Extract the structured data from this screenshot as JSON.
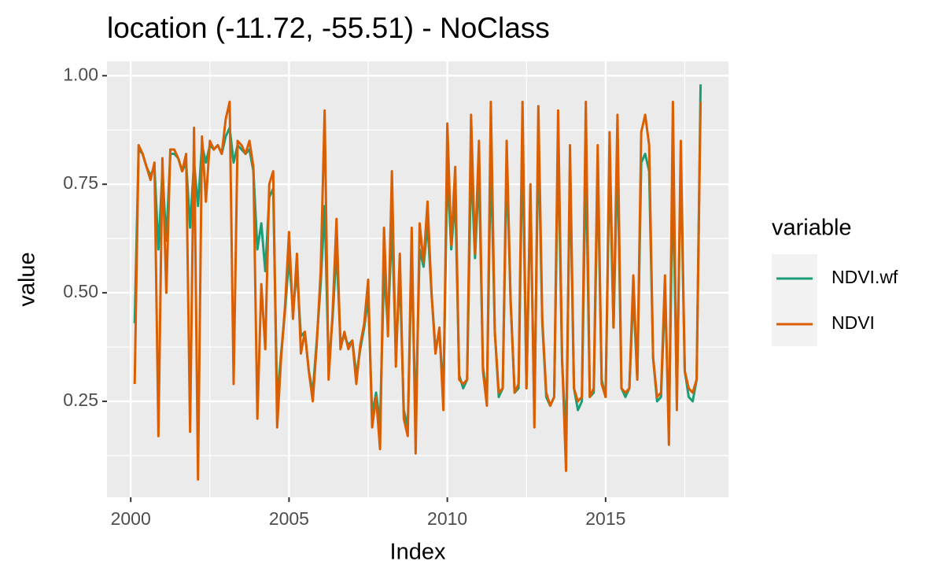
{
  "chart_data": {
    "type": "line",
    "title": "location (-11.72, -55.51) - NoClass",
    "x_label": "Index",
    "y_label": "value",
    "legend_title": "variable",
    "legend_position": "right",
    "grid": true,
    "xlim": [
      1999.25,
      2018.88
    ],
    "xticks": [
      2000,
      2005,
      2010,
      2015
    ],
    "ylim": [
      0.029,
      1.033
    ],
    "yticks": [
      {
        "value": 0.25,
        "label": "0.25"
      },
      {
        "value": 0.5,
        "label": "0.50"
      },
      {
        "value": 0.75,
        "label": "0.75"
      },
      {
        "value": 1.0,
        "label": "1.00"
      }
    ],
    "x": [
      2000.125,
      2000.25,
      2000.375,
      2000.5,
      2000.625,
      2000.75,
      2000.875,
      2001.0,
      2001.125,
      2001.25,
      2001.375,
      2001.5,
      2001.625,
      2001.75,
      2001.875,
      2002.0,
      2002.125,
      2002.25,
      2002.375,
      2002.5,
      2002.625,
      2002.75,
      2002.875,
      2003.0,
      2003.125,
      2003.25,
      2003.375,
      2003.5,
      2003.625,
      2003.75,
      2003.875,
      2004.0,
      2004.125,
      2004.25,
      2004.375,
      2004.5,
      2004.625,
      2004.75,
      2004.875,
      2005.0,
      2005.125,
      2005.25,
      2005.375,
      2005.5,
      2005.625,
      2005.75,
      2005.875,
      2006.0,
      2006.125,
      2006.25,
      2006.375,
      2006.5,
      2006.625,
      2006.75,
      2006.875,
      2007.0,
      2007.125,
      2007.25,
      2007.375,
      2007.5,
      2007.625,
      2007.75,
      2007.875,
      2008.0,
      2008.125,
      2008.25,
      2008.375,
      2008.5,
      2008.625,
      2008.75,
      2008.875,
      2009.0,
      2009.125,
      2009.25,
      2009.375,
      2009.5,
      2009.625,
      2009.75,
      2009.875,
      2010.0,
      2010.125,
      2010.25,
      2010.375,
      2010.5,
      2010.625,
      2010.75,
      2010.875,
      2011.0,
      2011.125,
      2011.25,
      2011.375,
      2011.5,
      2011.625,
      2011.75,
      2011.875,
      2012.0,
      2012.125,
      2012.25,
      2012.375,
      2012.5,
      2012.625,
      2012.75,
      2012.875,
      2013.0,
      2013.125,
      2013.25,
      2013.375,
      2013.5,
      2013.625,
      2013.75,
      2013.875,
      2014.0,
      2014.125,
      2014.25,
      2014.375,
      2014.5,
      2014.625,
      2014.75,
      2014.875,
      2015.0,
      2015.125,
      2015.25,
      2015.375,
      2015.5,
      2015.625,
      2015.75,
      2015.875,
      2016.0,
      2016.125,
      2016.25,
      2016.375,
      2016.5,
      2016.625,
      2016.75,
      2016.875,
      2017.0,
      2017.125,
      2017.25,
      2017.375,
      2017.5,
      2017.625,
      2017.75,
      2017.875,
      2018.0
    ],
    "series": [
      {
        "name": "NDVI.wf",
        "color": "#1b9e77",
        "values": [
          0.43,
          0.83,
          0.82,
          0.79,
          0.77,
          0.79,
          0.6,
          0.78,
          0.62,
          0.82,
          0.82,
          0.81,
          0.78,
          0.8,
          0.65,
          0.8,
          0.7,
          0.84,
          0.8,
          0.84,
          0.83,
          0.84,
          0.82,
          0.86,
          0.88,
          0.8,
          0.84,
          0.83,
          0.82,
          0.83,
          0.78,
          0.6,
          0.66,
          0.55,
          0.72,
          0.74,
          0.25,
          0.36,
          0.46,
          0.58,
          0.46,
          0.55,
          0.4,
          0.41,
          0.32,
          0.27,
          0.39,
          0.52,
          0.7,
          0.33,
          0.44,
          0.6,
          0.39,
          0.4,
          0.38,
          0.39,
          0.31,
          0.37,
          0.42,
          0.49,
          0.22,
          0.27,
          0.2,
          0.55,
          0.42,
          0.66,
          0.36,
          0.54,
          0.23,
          0.19,
          0.58,
          0.2,
          0.6,
          0.56,
          0.66,
          0.5,
          0.37,
          0.41,
          0.27,
          0.78,
          0.6,
          0.72,
          0.31,
          0.28,
          0.3,
          0.8,
          0.58,
          0.78,
          0.33,
          0.26,
          0.82,
          0.41,
          0.26,
          0.28,
          0.8,
          0.48,
          0.27,
          0.28,
          0.85,
          0.28,
          0.72,
          0.22,
          0.86,
          0.43,
          0.26,
          0.24,
          0.26,
          0.84,
          0.34,
          0.16,
          0.78,
          0.28,
          0.23,
          0.25,
          0.82,
          0.26,
          0.27,
          0.78,
          0.3,
          0.26,
          0.8,
          0.42,
          0.82,
          0.28,
          0.26,
          0.28,
          0.5,
          0.3,
          0.8,
          0.82,
          0.78,
          0.35,
          0.25,
          0.26,
          0.5,
          0.2,
          0.76,
          0.26,
          0.8,
          0.32,
          0.26,
          0.25,
          0.3,
          0.98
        ]
      },
      {
        "name": "NDVI",
        "color": "#d95f02",
        "values": [
          0.29,
          0.84,
          0.82,
          0.79,
          0.76,
          0.8,
          0.17,
          0.81,
          0.5,
          0.83,
          0.83,
          0.81,
          0.78,
          0.82,
          0.18,
          0.88,
          0.07,
          0.86,
          0.71,
          0.85,
          0.83,
          0.84,
          0.82,
          0.9,
          0.94,
          0.29,
          0.85,
          0.84,
          0.82,
          0.85,
          0.79,
          0.21,
          0.52,
          0.37,
          0.75,
          0.78,
          0.19,
          0.35,
          0.47,
          0.64,
          0.44,
          0.59,
          0.36,
          0.41,
          0.32,
          0.25,
          0.38,
          0.55,
          0.92,
          0.3,
          0.45,
          0.67,
          0.37,
          0.41,
          0.37,
          0.39,
          0.29,
          0.38,
          0.43,
          0.53,
          0.19,
          0.26,
          0.14,
          0.65,
          0.4,
          0.78,
          0.33,
          0.59,
          0.21,
          0.17,
          0.65,
          0.13,
          0.66,
          0.57,
          0.71,
          0.5,
          0.36,
          0.42,
          0.23,
          0.89,
          0.61,
          0.79,
          0.3,
          0.29,
          0.3,
          0.91,
          0.59,
          0.85,
          0.32,
          0.24,
          0.94,
          0.41,
          0.27,
          0.28,
          0.85,
          0.48,
          0.27,
          0.29,
          0.94,
          0.28,
          0.75,
          0.19,
          0.93,
          0.44,
          0.27,
          0.24,
          0.26,
          0.92,
          0.35,
          0.09,
          0.84,
          0.28,
          0.25,
          0.26,
          0.94,
          0.26,
          0.28,
          0.84,
          0.29,
          0.26,
          0.87,
          0.42,
          0.91,
          0.28,
          0.27,
          0.28,
          0.54,
          0.3,
          0.87,
          0.91,
          0.84,
          0.35,
          0.26,
          0.27,
          0.54,
          0.15,
          0.94,
          0.23,
          0.85,
          0.32,
          0.28,
          0.27,
          0.3,
          0.94
        ]
      }
    ]
  }
}
